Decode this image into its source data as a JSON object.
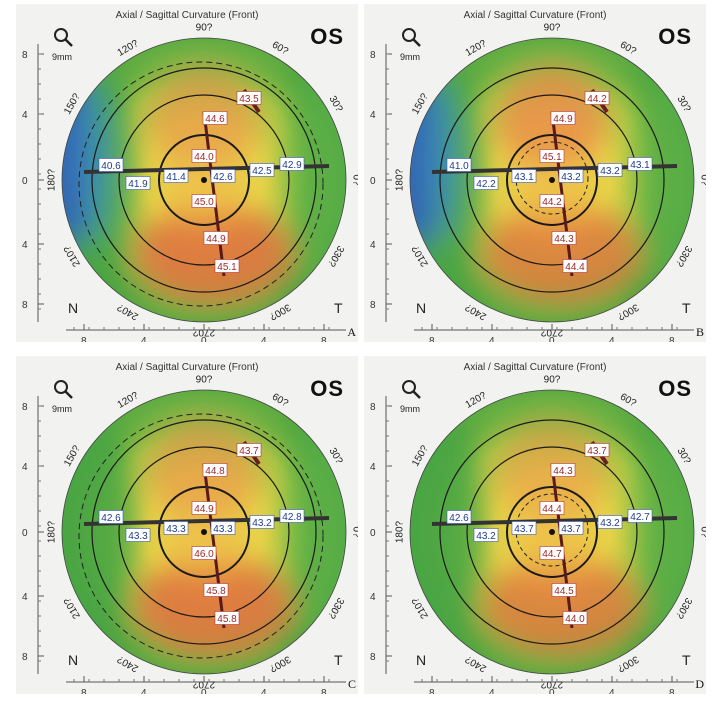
{
  "common": {
    "title": "Axial / Sagittal Curvature (Front)",
    "eye": "OS",
    "zoom": "9mm",
    "nasal": "N",
    "temporal": "T",
    "angle_labels": [
      "90?",
      "60?",
      "30?",
      "0?",
      "330?",
      "300?",
      "270?",
      "240?",
      "210?",
      "180?",
      "150?",
      "120?"
    ],
    "axis_ticks_x": [
      "8",
      "4",
      "0",
      "4",
      "8"
    ],
    "axis_ticks_y": [
      "8",
      "4",
      "0",
      "4",
      "8"
    ]
  },
  "panels": [
    {
      "label": "A",
      "readings": [
        "43.5",
        "44.6",
        "44.0",
        "40.6",
        "41.9",
        "41.4",
        "42.6",
        "42.5",
        "42.9",
        "45.0",
        "44.9",
        "45.1"
      ]
    },
    {
      "label": "B",
      "readings": [
        "44.2",
        "44.9",
        "45.1",
        "41.0",
        "42.2",
        "43.1",
        "43.2",
        "43.2",
        "43.1",
        "44.2",
        "44.3",
        "44.4"
      ]
    },
    {
      "label": "C",
      "readings": [
        "43.7",
        "44.8",
        "44.9",
        "42.6",
        "43.3",
        "43.3",
        "43.3",
        "43.2",
        "42.8",
        "46.0",
        "45.8",
        "45.8"
      ]
    },
    {
      "label": "D",
      "readings": [
        "43.7",
        "44.3",
        "44.4",
        "42.6",
        "43.2",
        "43.7",
        "43.7",
        "43.2",
        "42.7",
        "44.7",
        "44.5",
        "44.0"
      ]
    }
  ]
}
